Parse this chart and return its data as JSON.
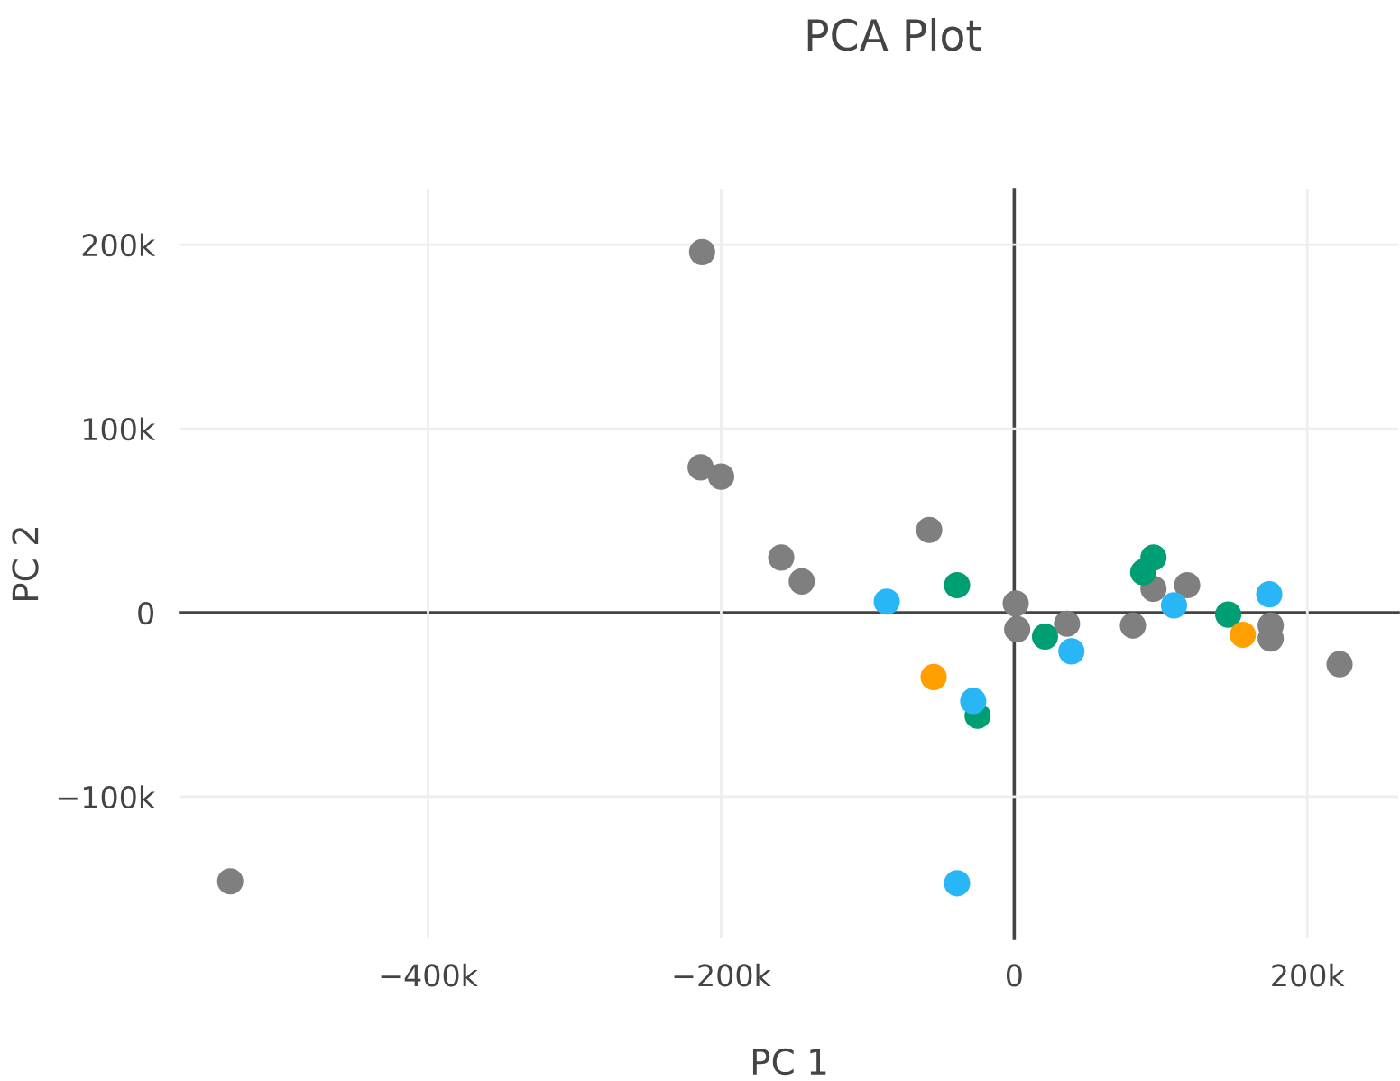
{
  "chart_data": {
    "type": "scatter",
    "title": "PCA Plot",
    "xlabel": "PC 1",
    "ylabel": "PC 2",
    "xlim": [
      -569000,
      262000
    ],
    "ylim": [
      -177000,
      230000
    ],
    "xticks": [
      {
        "value": -400000,
        "label": "−400k"
      },
      {
        "value": -200000,
        "label": "−200k"
      },
      {
        "value": 0,
        "label": "0"
      },
      {
        "value": 200000,
        "label": "200k"
      }
    ],
    "yticks": [
      {
        "value": -100000,
        "label": "−100k"
      },
      {
        "value": 0,
        "label": "0"
      },
      {
        "value": 100000,
        "label": "100k"
      },
      {
        "value": 200000,
        "label": "200k"
      }
    ],
    "grid": true,
    "legend": false,
    "marker": "circle",
    "series": [
      {
        "color": "#7f7f7f",
        "x": [
          -535000,
          -213000,
          -214000,
          -200000,
          -159000,
          -145000,
          -58000,
          1000,
          2000,
          36000,
          81000,
          95000,
          118000,
          175000,
          175000,
          222000
        ],
        "values": [
          -146000,
          196000,
          79000,
          74000,
          30000,
          17000,
          45000,
          5000,
          -9000,
          -6000,
          -7000,
          13000,
          15000,
          -7000,
          -14000,
          -28000
        ]
      },
      {
        "color": "#009e73",
        "x": [
          -39000,
          88000,
          95000,
          21000,
          146000,
          -25000
        ],
        "values": [
          15000,
          22000,
          30000,
          -13000,
          -1000,
          -56000
        ]
      },
      {
        "color": "#29b6f6",
        "x": [
          -87000,
          109000,
          174000,
          39000,
          -28000,
          -39000
        ],
        "values": [
          6000,
          4000,
          10000,
          -21000,
          -48000,
          -147000
        ]
      },
      {
        "color": "#ff9f00",
        "x": [
          -55000,
          156000
        ],
        "values": [
          -35000,
          -12000
        ]
      }
    ]
  }
}
